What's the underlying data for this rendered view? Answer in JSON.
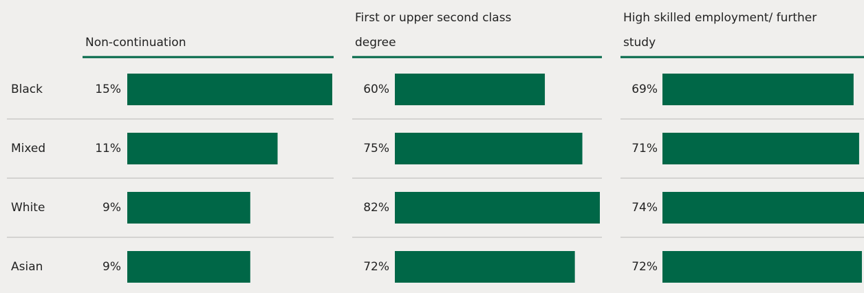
{
  "chart_data": {
    "type": "bar",
    "categories": [
      "Black",
      "Mixed",
      "White",
      "Asian"
    ],
    "series": [
      {
        "name": "Non-continuation",
        "color": "#006747",
        "values": [
          15,
          11,
          9,
          9
        ],
        "value_labels": [
          "15%",
          "11%",
          "9%",
          "9%"
        ]
      },
      {
        "name": "First or upper second class degree",
        "color": "#006747",
        "values": [
          60,
          75,
          82,
          72
        ],
        "value_labels": [
          "60%",
          "75%",
          "82%",
          "72%"
        ]
      },
      {
        "name": "High skilled employment/ further study",
        "color": "#006747",
        "values": [
          69,
          71,
          74,
          72
        ],
        "value_labels": [
          "69%",
          "71%",
          "74%",
          "72%"
        ]
      }
    ]
  }
}
